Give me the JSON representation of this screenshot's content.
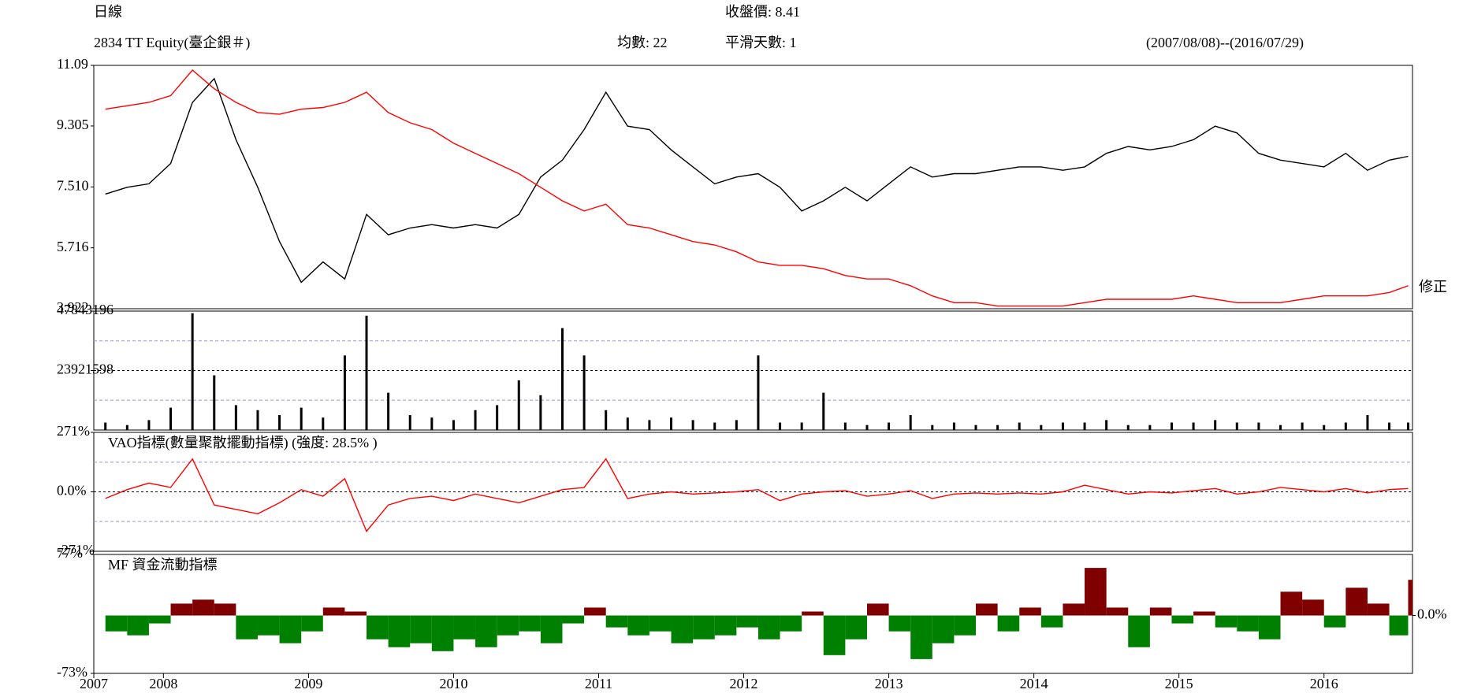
{
  "header": {
    "period": "日線",
    "close": "收盤價: 8.41",
    "ticker": "2834 TT Equity(臺企銀＃)",
    "average": "均數: 22",
    "smoothing": "平滑天數: 1",
    "range": "(2007/08/08)--(2016/07/29)"
  },
  "chart_data": [
    {
      "type": "line",
      "annotation": "修正",
      "x": [
        2007.6,
        2007.75,
        2007.9,
        2008.05,
        2008.2,
        2008.35,
        2008.5,
        2008.65,
        2008.8,
        2008.95,
        2009.1,
        2009.25,
        2009.4,
        2009.55,
        2009.7,
        2009.85,
        2010,
        2010.15,
        2010.3,
        2010.45,
        2010.6,
        2010.75,
        2010.9,
        2011.05,
        2011.2,
        2011.35,
        2011.5,
        2011.65,
        2011.8,
        2011.95,
        2012.1,
        2012.25,
        2012.4,
        2012.55,
        2012.7,
        2012.85,
        2013,
        2013.15,
        2013.3,
        2013.45,
        2013.6,
        2013.75,
        2013.9,
        2014.05,
        2014.2,
        2014.35,
        2014.5,
        2014.65,
        2014.8,
        2014.95,
        2015.1,
        2015.25,
        2015.4,
        2015.55,
        2015.7,
        2015.85,
        2016,
        2016.15,
        2016.3,
        2016.45,
        2016.58
      ],
      "series": [
        {
          "color": "#000000",
          "values": [
            7.3,
            7.5,
            7.6,
            8.2,
            10.0,
            10.7,
            8.9,
            7.5,
            5.9,
            4.7,
            5.3,
            4.8,
            6.7,
            6.1,
            6.3,
            6.4,
            6.3,
            6.4,
            6.3,
            6.7,
            7.8,
            8.3,
            9.2,
            10.3,
            9.3,
            9.2,
            8.6,
            8.1,
            7.6,
            7.8,
            7.9,
            7.5,
            6.8,
            7.1,
            7.5,
            7.1,
            7.6,
            8.1,
            7.8,
            7.9,
            7.9,
            8.0,
            8.1,
            8.1,
            8.0,
            8.1,
            8.5,
            8.7,
            8.6,
            8.7,
            8.9,
            9.3,
            9.1,
            8.5,
            8.3,
            8.2,
            8.1,
            8.5,
            8.0,
            8.3,
            8.41
          ]
        },
        {
          "color": "#ff0000",
          "values": [
            9.8,
            9.9,
            10.0,
            10.2,
            10.95,
            10.4,
            10.0,
            9.7,
            9.65,
            9.8,
            9.85,
            10.0,
            10.3,
            9.7,
            9.4,
            9.2,
            8.8,
            8.5,
            8.2,
            7.9,
            7.5,
            7.1,
            6.8,
            7.0,
            6.4,
            6.3,
            6.1,
            5.9,
            5.8,
            5.6,
            5.3,
            5.2,
            5.2,
            5.1,
            4.9,
            4.8,
            4.8,
            4.6,
            4.3,
            4.1,
            4.1,
            4.0,
            4.0,
            4.0,
            4.0,
            4.1,
            4.2,
            4.2,
            4.2,
            4.2,
            4.3,
            4.2,
            4.1,
            4.1,
            4.1,
            4.2,
            4.3,
            4.3,
            4.3,
            4.4,
            4.6
          ]
        }
      ],
      "xlim": [
        2007.52,
        2016.61
      ],
      "ylim": [
        3.922,
        11.09
      ],
      "yticks": [
        11.09,
        9.305,
        {
          "value": 7.51,
          "label": "7.510"
        },
        5.716,
        3.922
      ],
      "grid": false
    },
    {
      "type": "bar",
      "color": "#000000",
      "x": [
        2007.6,
        2007.75,
        2007.9,
        2008.05,
        2008.2,
        2008.35,
        2008.5,
        2008.65,
        2008.8,
        2008.95,
        2009.1,
        2009.25,
        2009.4,
        2009.55,
        2009.7,
        2009.85,
        2010,
        2010.15,
        2010.3,
        2010.45,
        2010.6,
        2010.75,
        2010.9,
        2011.05,
        2011.2,
        2011.35,
        2011.5,
        2011.65,
        2011.8,
        2011.95,
        2012.1,
        2012.25,
        2012.4,
        2012.55,
        2012.7,
        2012.85,
        2013,
        2013.15,
        2013.3,
        2013.45,
        2013.6,
        2013.75,
        2013.9,
        2014.05,
        2014.2,
        2014.35,
        2014.5,
        2014.65,
        2014.8,
        2014.95,
        2015.1,
        2015.25,
        2015.4,
        2015.55,
        2015.7,
        2015.85,
        2016,
        2016.15,
        2016.3,
        2016.45,
        2016.58
      ],
      "values": [
        3000000,
        2000000,
        4000000,
        9000000,
        47000000,
        22000000,
        10000000,
        8000000,
        6000000,
        9000000,
        5000000,
        30000000,
        46000000,
        15000000,
        6000000,
        5000000,
        4000000,
        8000000,
        10000000,
        20000000,
        14000000,
        41000000,
        30000000,
        8000000,
        5000000,
        4000000,
        5000000,
        4000000,
        3000000,
        4000000,
        30000000,
        3000000,
        3000000,
        15000000,
        3000000,
        2000000,
        3000000,
        6000000,
        2000000,
        3000000,
        2000000,
        2000000,
        3000000,
        2000000,
        3000000,
        3000000,
        4000000,
        2000000,
        2000000,
        3000000,
        3000000,
        4000000,
        3000000,
        3000000,
        2000000,
        3000000,
        2000000,
        3000000,
        6000000,
        3000000,
        3000000
      ],
      "xlim": [
        2007.52,
        2016.61
      ],
      "ylim": [
        0,
        47843196
      ],
      "yticks": [
        47843196,
        23921598
      ],
      "gridlines": [
        35900000,
        12000000
      ],
      "grid": true
    },
    {
      "type": "line",
      "title": "VAO指標(數量聚散擺動指標) (強度: 28.5% )",
      "x": [
        2007.6,
        2007.75,
        2007.9,
        2008.05,
        2008.2,
        2008.35,
        2008.5,
        2008.65,
        2008.8,
        2008.95,
        2009.1,
        2009.25,
        2009.4,
        2009.55,
        2009.7,
        2009.85,
        2010,
        2010.15,
        2010.3,
        2010.45,
        2010.6,
        2010.75,
        2010.9,
        2011.05,
        2011.2,
        2011.35,
        2011.5,
        2011.65,
        2011.8,
        2011.95,
        2012.1,
        2012.25,
        2012.4,
        2012.55,
        2012.7,
        2012.85,
        2013,
        2013.15,
        2013.3,
        2013.45,
        2013.6,
        2013.75,
        2013.9,
        2014.05,
        2014.2,
        2014.35,
        2014.5,
        2014.65,
        2014.8,
        2014.95,
        2015.1,
        2015.25,
        2015.4,
        2015.55,
        2015.7,
        2015.85,
        2016,
        2016.15,
        2016.3,
        2016.45,
        2016.58
      ],
      "series": [
        {
          "color": "#ff0000",
          "values": [
            -30,
            10,
            40,
            20,
            150,
            -60,
            -80,
            -100,
            -50,
            10,
            -20,
            60,
            -180,
            -60,
            -30,
            -20,
            -40,
            -10,
            -30,
            -50,
            -20,
            10,
            20,
            150,
            -30,
            -10,
            0,
            -10,
            -5,
            0,
            10,
            -40,
            -10,
            0,
            5,
            -20,
            -10,
            5,
            -30,
            -10,
            -5,
            -10,
            -5,
            -10,
            0,
            30,
            10,
            -10,
            0,
            -5,
            5,
            15,
            -10,
            0,
            20,
            10,
            0,
            15,
            -5,
            10,
            15
          ]
        }
      ],
      "xlim": [
        2007.52,
        2016.61
      ],
      "ylim": [
        -271,
        271
      ],
      "yticks": [
        {
          "value": 271,
          "label": "271%"
        },
        {
          "value": 0,
          "label": "0.0%"
        },
        {
          "value": -271,
          "label": "-271%"
        }
      ],
      "gridlines": [
        135,
        -135
      ],
      "grid": true
    },
    {
      "type": "bar",
      "title": "MF 資金流動指標",
      "color": "#800000",
      "negative_color": "#008000",
      "x": [
        2007.6,
        2007.75,
        2007.9,
        2008.05,
        2008.2,
        2008.35,
        2008.5,
        2008.65,
        2008.8,
        2008.95,
        2009.1,
        2009.25,
        2009.4,
        2009.55,
        2009.7,
        2009.85,
        2010,
        2010.15,
        2010.3,
        2010.45,
        2010.6,
        2010.75,
        2010.9,
        2011.05,
        2011.2,
        2011.35,
        2011.5,
        2011.65,
        2011.8,
        2011.95,
        2012.1,
        2012.25,
        2012.4,
        2012.55,
        2012.7,
        2012.85,
        2013,
        2013.15,
        2013.3,
        2013.45,
        2013.6,
        2013.75,
        2013.9,
        2014.05,
        2014.2,
        2014.35,
        2014.5,
        2014.65,
        2014.8,
        2014.95,
        2015.1,
        2015.25,
        2015.4,
        2015.55,
        2015.7,
        2015.85,
        2016,
        2016.15,
        2016.3,
        2016.45,
        2016.58
      ],
      "values": [
        -20,
        -25,
        -10,
        15,
        20,
        15,
        -30,
        -25,
        -35,
        -20,
        10,
        5,
        -30,
        -40,
        -35,
        -45,
        -30,
        -40,
        -25,
        -20,
        -35,
        -10,
        10,
        -15,
        -25,
        -20,
        -35,
        -30,
        -25,
        -15,
        -30,
        -20,
        5,
        -50,
        -30,
        15,
        -20,
        -55,
        -35,
        -25,
        15,
        -20,
        10,
        -15,
        15,
        60,
        10,
        -40,
        10,
        -10,
        5,
        -15,
        -20,
        -30,
        30,
        20,
        -15,
        35,
        15,
        -25,
        45
      ],
      "xlim": [
        2007.52,
        2016.61
      ],
      "ylim": [
        -73,
        77
      ],
      "yticks": [
        {
          "value": 77,
          "label": "77%"
        },
        {
          "value": -73,
          "label": "-73%"
        }
      ],
      "yticks_right": [
        {
          "value": 0,
          "label": "0.0%"
        }
      ],
      "xticks": [
        {
          "value": 2007.52,
          "label": "2007"
        },
        2008,
        2009,
        2010,
        2011,
        2012,
        2013,
        2014,
        2015,
        2016
      ],
      "grid": false
    }
  ]
}
